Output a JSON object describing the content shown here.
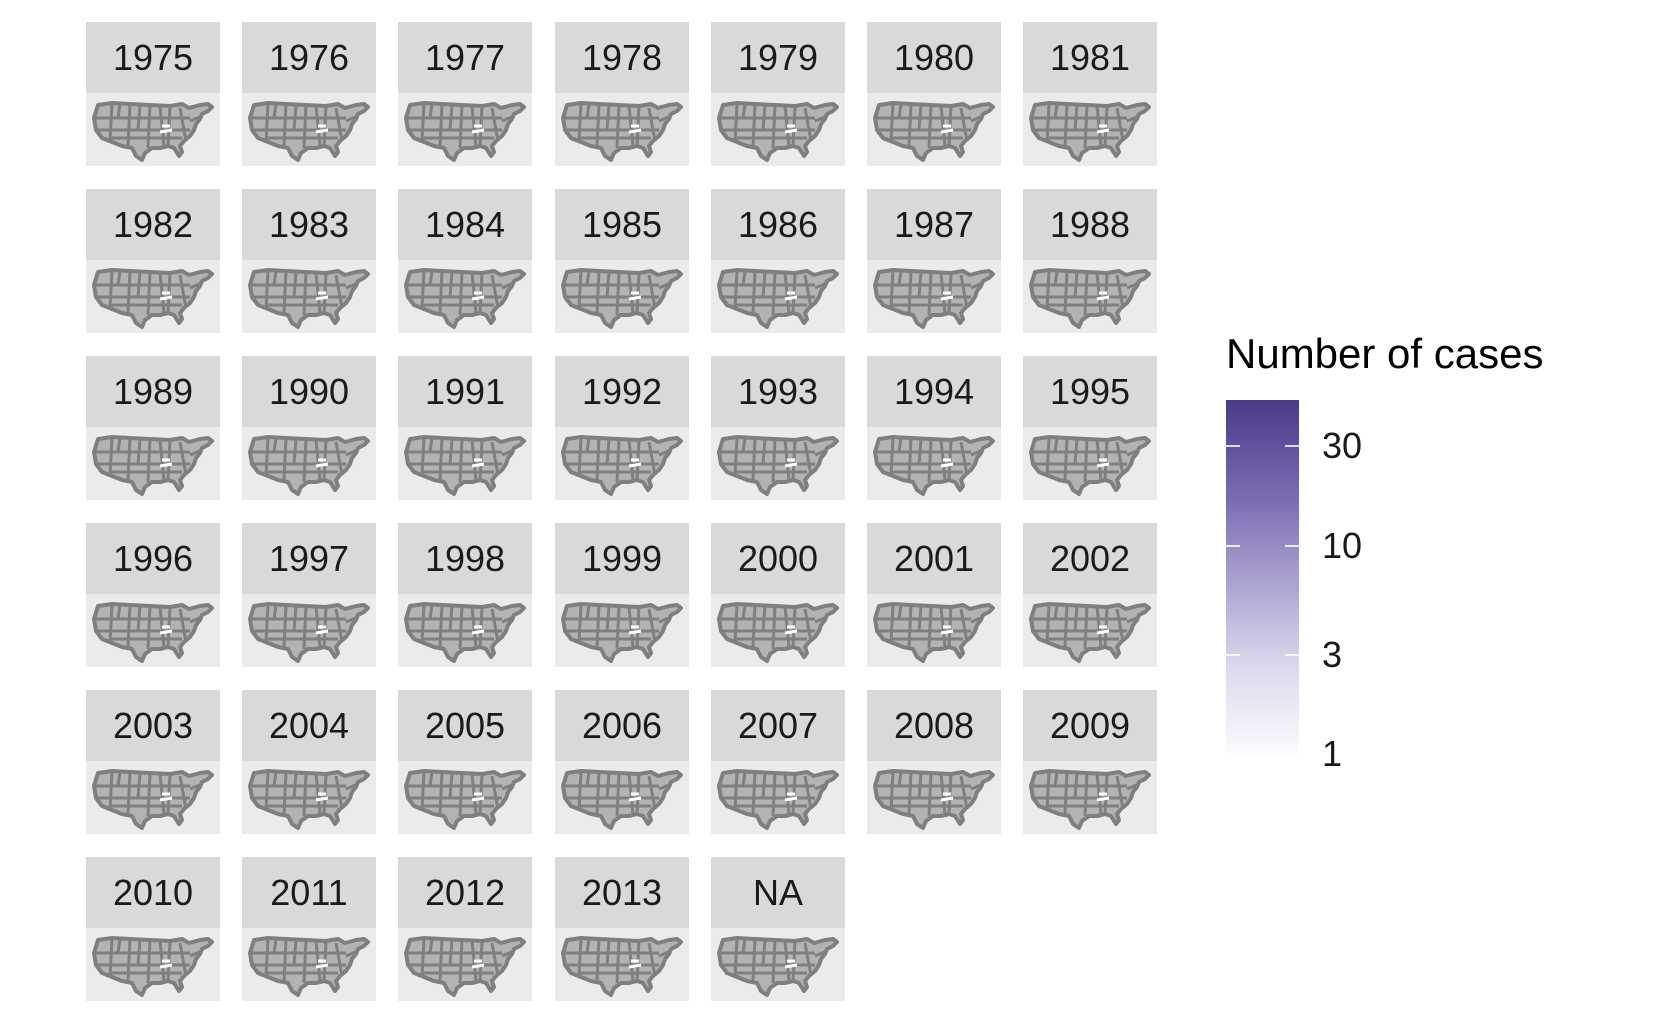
{
  "panels": [
    "1975",
    "1976",
    "1977",
    "1978",
    "1979",
    "1980",
    "1981",
    "1982",
    "1983",
    "1984",
    "1985",
    "1986",
    "1987",
    "1988",
    "1989",
    "1990",
    "1991",
    "1992",
    "1993",
    "1994",
    "1995",
    "1996",
    "1997",
    "1998",
    "1999",
    "2000",
    "2001",
    "2002",
    "2003",
    "2004",
    "2005",
    "2006",
    "2007",
    "2008",
    "2009",
    "2010",
    "2011",
    "2012",
    "2013",
    "NA"
  ],
  "legend": {
    "title": "Number of cases",
    "scale": "log",
    "range": [
      1,
      50
    ],
    "ticks": [
      {
        "value": 30,
        "label": "30"
      },
      {
        "value": 10,
        "label": "10"
      },
      {
        "value": 3,
        "label": "3"
      },
      {
        "value": 1,
        "label": "1"
      }
    ],
    "colors": {
      "low": "#fcfbfd",
      "high": "#4a3a8a"
    }
  },
  "map": {
    "fill": "#b3b3b3",
    "border": "#7f7f7f",
    "panel_bg": "#ebebeb",
    "strip_bg": "#d9d9d9",
    "highlight": "#7b6cb2"
  }
}
